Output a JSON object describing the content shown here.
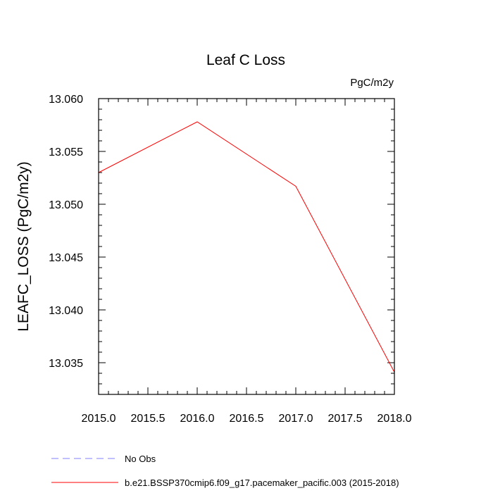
{
  "chart_data": {
    "type": "line",
    "title": "Leaf C Loss",
    "units_label": "PgC/m2y",
    "ylabel": "LEAFC_LOSS  (PgC/m2y)",
    "xlabel": "",
    "xlim": [
      2015.0,
      2018.0
    ],
    "ylim": [
      13.032,
      13.06
    ],
    "xticks": [
      2015.0,
      2015.5,
      2016.0,
      2016.5,
      2017.0,
      2017.5,
      2018.0
    ],
    "xtick_labels": [
      "2015.0",
      "2015.5",
      "2016.0",
      "2016.5",
      "2017.0",
      "2017.5",
      "2018.0"
    ],
    "yticks": [
      13.035,
      13.04,
      13.045,
      13.05,
      13.055,
      13.06
    ],
    "ytick_labels": [
      "13.035",
      "13.040",
      "13.045",
      "13.050",
      "13.055",
      "13.060"
    ],
    "grid": false,
    "legend_position": "bottom-left",
    "series": [
      {
        "name": "No Obs",
        "color": "#8080ff",
        "dash": "dashed",
        "x": [],
        "y": []
      },
      {
        "name": "b.e21.BSSP370cmip6.f09_g17.pacemaker_pacific.003 (2015-2018)",
        "color": "#ff0000",
        "dash": "solid",
        "x": [
          2015,
          2016,
          2017,
          2018
        ],
        "y": [
          13.053,
          13.0578,
          13.0517,
          13.0341
        ]
      }
    ]
  }
}
